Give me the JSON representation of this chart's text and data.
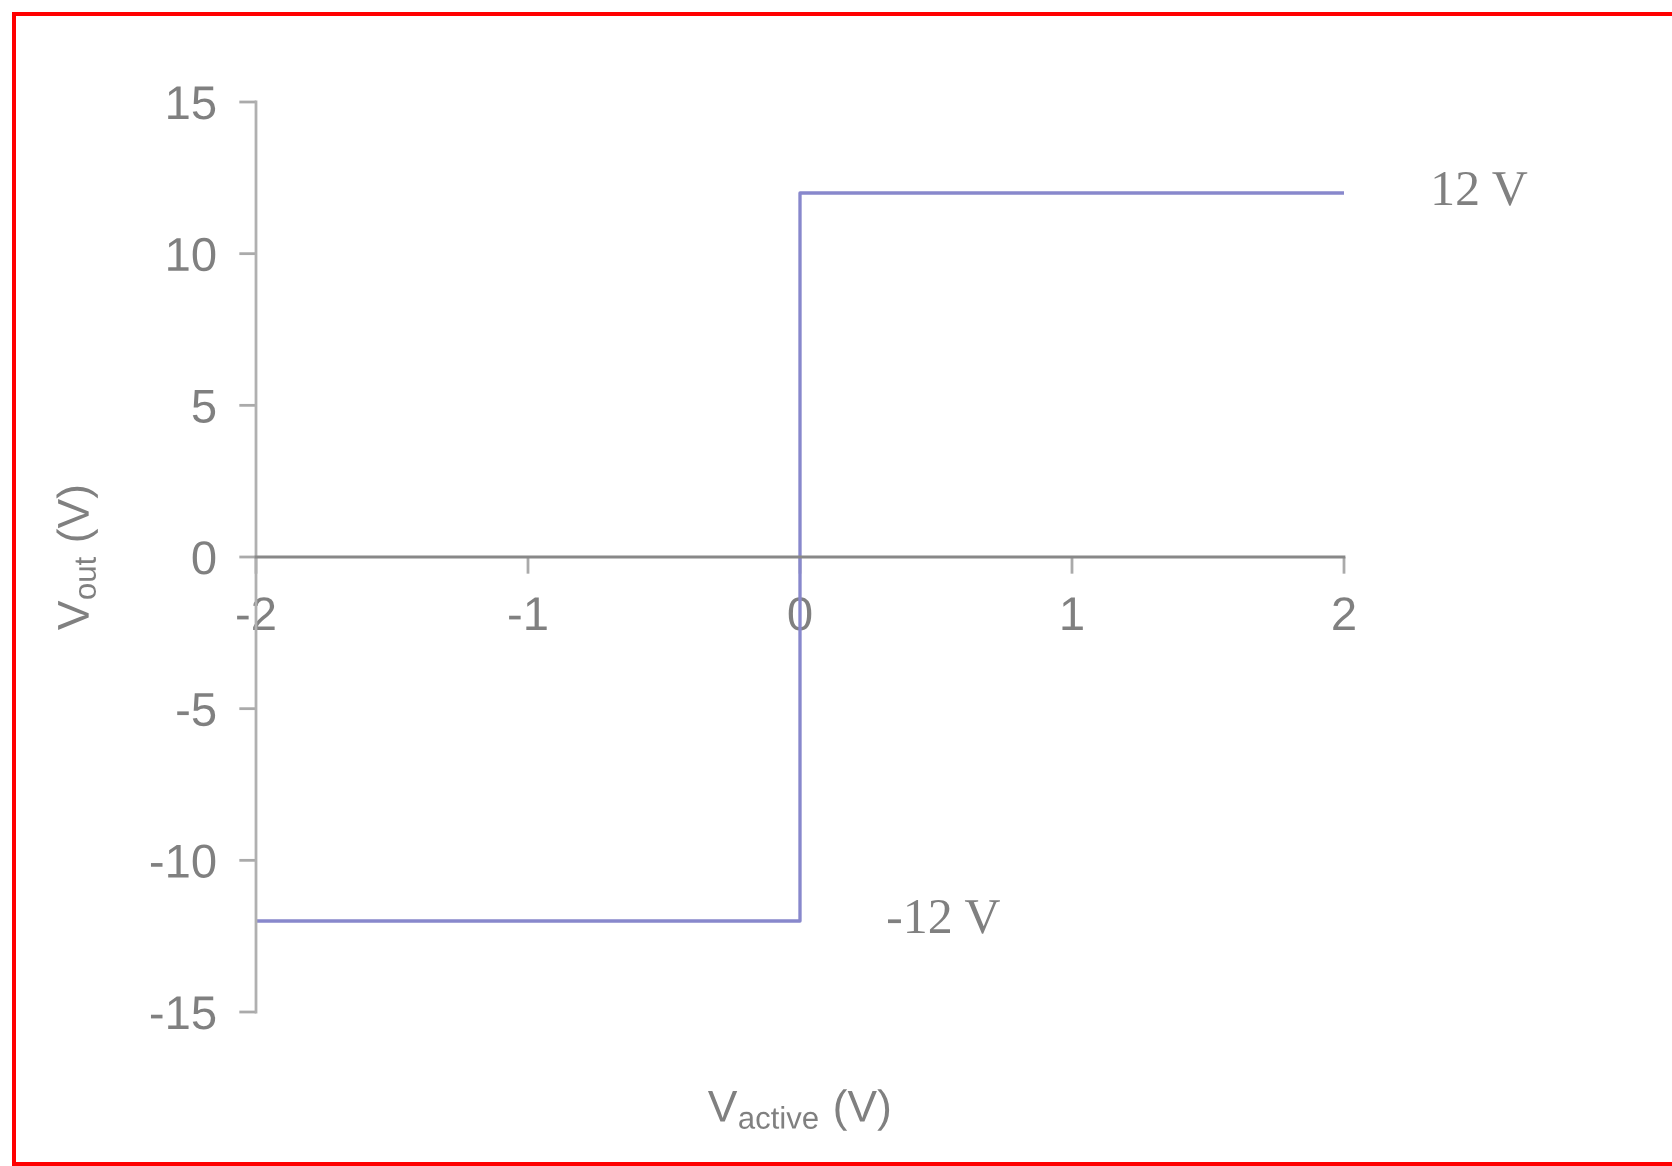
{
  "chart_data": {
    "type": "line",
    "xlabel": "V$_{active}$ (V)",
    "ylabel": "V$_{out}$ (V)",
    "x": [
      -2,
      0,
      0,
      2
    ],
    "series": [
      {
        "color": "#8888cc",
        "values": [
          -12,
          -12,
          12,
          12
        ]
      }
    ],
    "xlim": [
      -2,
      2
    ],
    "ylim": [
      -15,
      15
    ],
    "xticks": [
      -2,
      -1,
      0,
      1,
      2
    ],
    "yticks": [
      -15,
      -10,
      -5,
      0,
      5,
      10,
      15
    ],
    "grid": false,
    "marker": "none",
    "line_style": "solid",
    "annotations": [
      {
        "text": "12 V",
        "x": 2,
        "y": 12
      },
      {
        "text": "-12 V",
        "x": 0,
        "y": -12
      }
    ]
  }
}
